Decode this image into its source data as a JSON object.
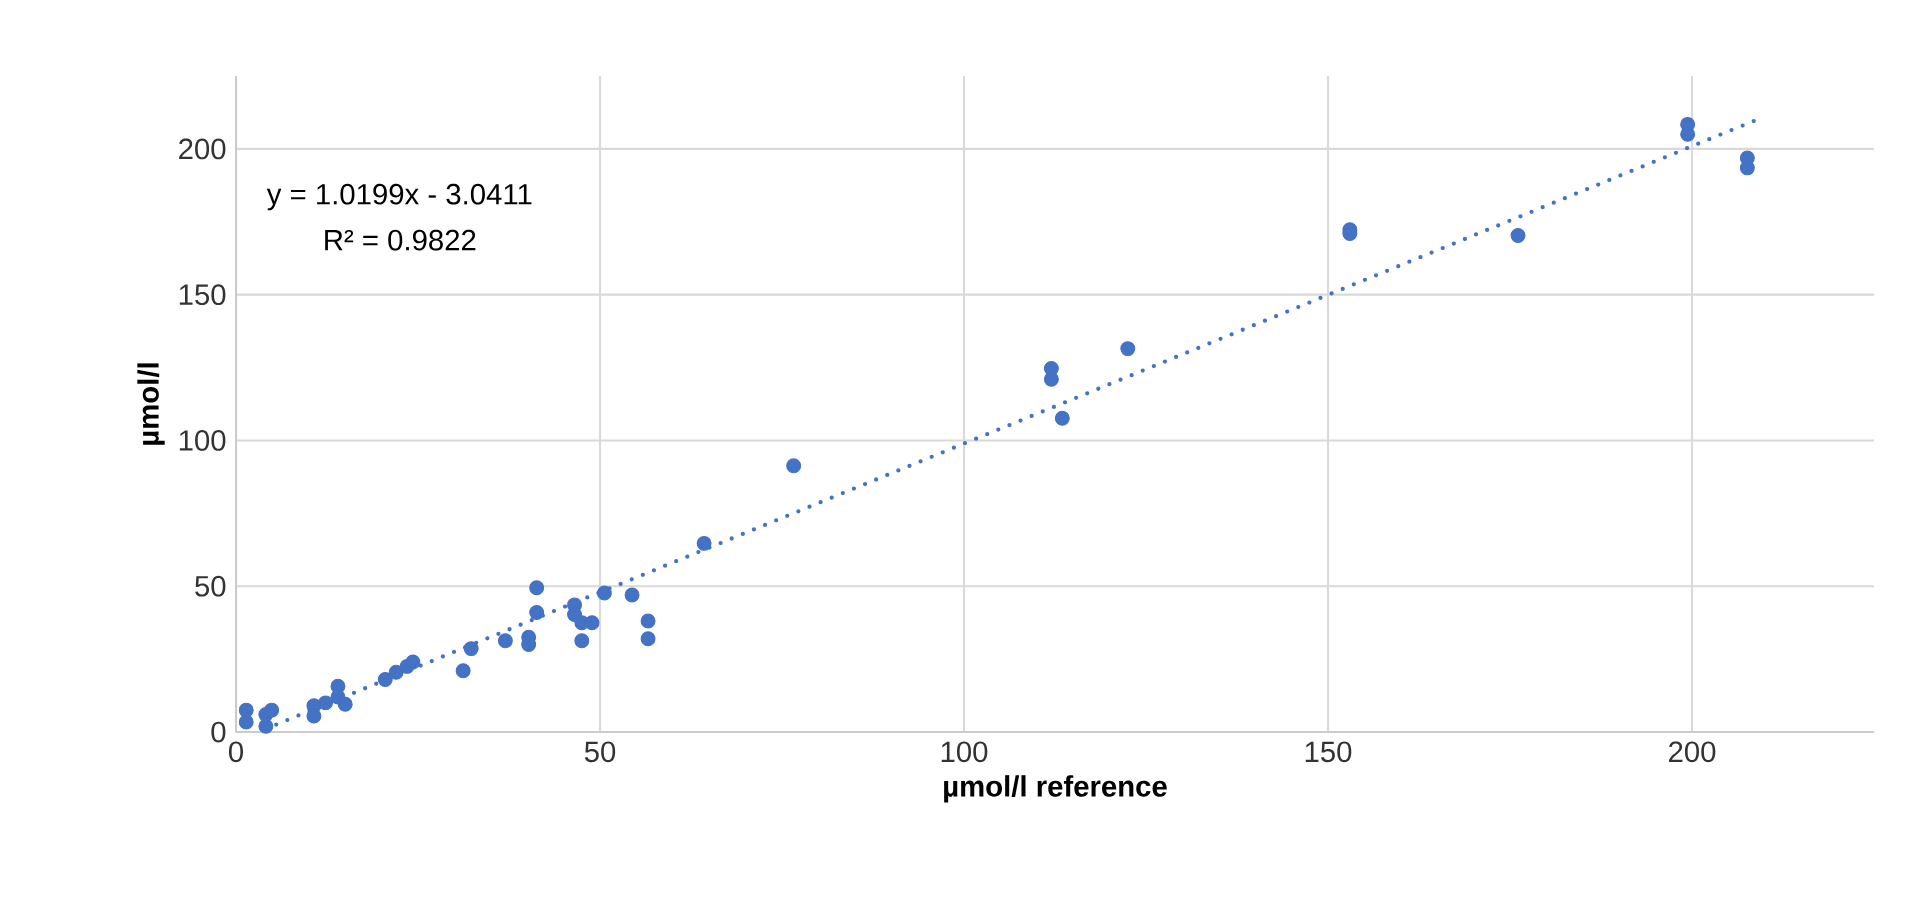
{
  "chart_data": {
    "type": "scatter",
    "xlabel": "µmol/l reference",
    "ylabel": "µmol/l",
    "xlim": [
      0,
      225
    ],
    "ylim": [
      0,
      225
    ],
    "xticks": [
      0,
      50,
      100,
      150,
      200
    ],
    "yticks": [
      0,
      50,
      100,
      150,
      200
    ],
    "grid": true,
    "annotations": [
      "y = 1.0199x - 3.0411",
      "R² = 0.9822"
    ],
    "series": [
      {
        "color": "#4472c4",
        "marker": "circle",
        "x": [
          1.4,
          1.4,
          4.1,
          4.1,
          4.9,
          10.7,
          10.7,
          12.3,
          14,
          14,
          15,
          20.5,
          22,
          23.5,
          24.3,
          31.2,
          32.3,
          37,
          40.2,
          40.2,
          41.3,
          41.3,
          46.5,
          46.5,
          47.5,
          47.5,
          48.9,
          50.6,
          54.4,
          56.6,
          56.6,
          64.3,
          76.6,
          112,
          112,
          113.5,
          122.5,
          153,
          153,
          176.1,
          199.4,
          199.4,
          207.6,
          207.6
        ],
        "values": [
          7.5,
          3.4,
          6,
          2,
          7.5,
          9,
          5.5,
          10,
          15.7,
          12,
          9.5,
          18,
          20.5,
          22.5,
          24,
          21,
          28.6,
          31.3,
          32.5,
          30,
          49.5,
          41,
          43.6,
          40.3,
          37.5,
          31.3,
          37.5,
          47.7,
          47,
          38.1,
          32,
          64.7,
          91.3,
          124.7,
          121,
          107.6,
          131.5,
          172.3,
          171,
          170.3,
          208.4,
          205,
          196.9,
          193.5
        ]
      },
      {
        "type": "line",
        "color": "#4472c4",
        "line_style": "dotted",
        "x": [
          4,
          209
        ],
        "values": [
          1.0,
          210.1
        ]
      }
    ]
  }
}
